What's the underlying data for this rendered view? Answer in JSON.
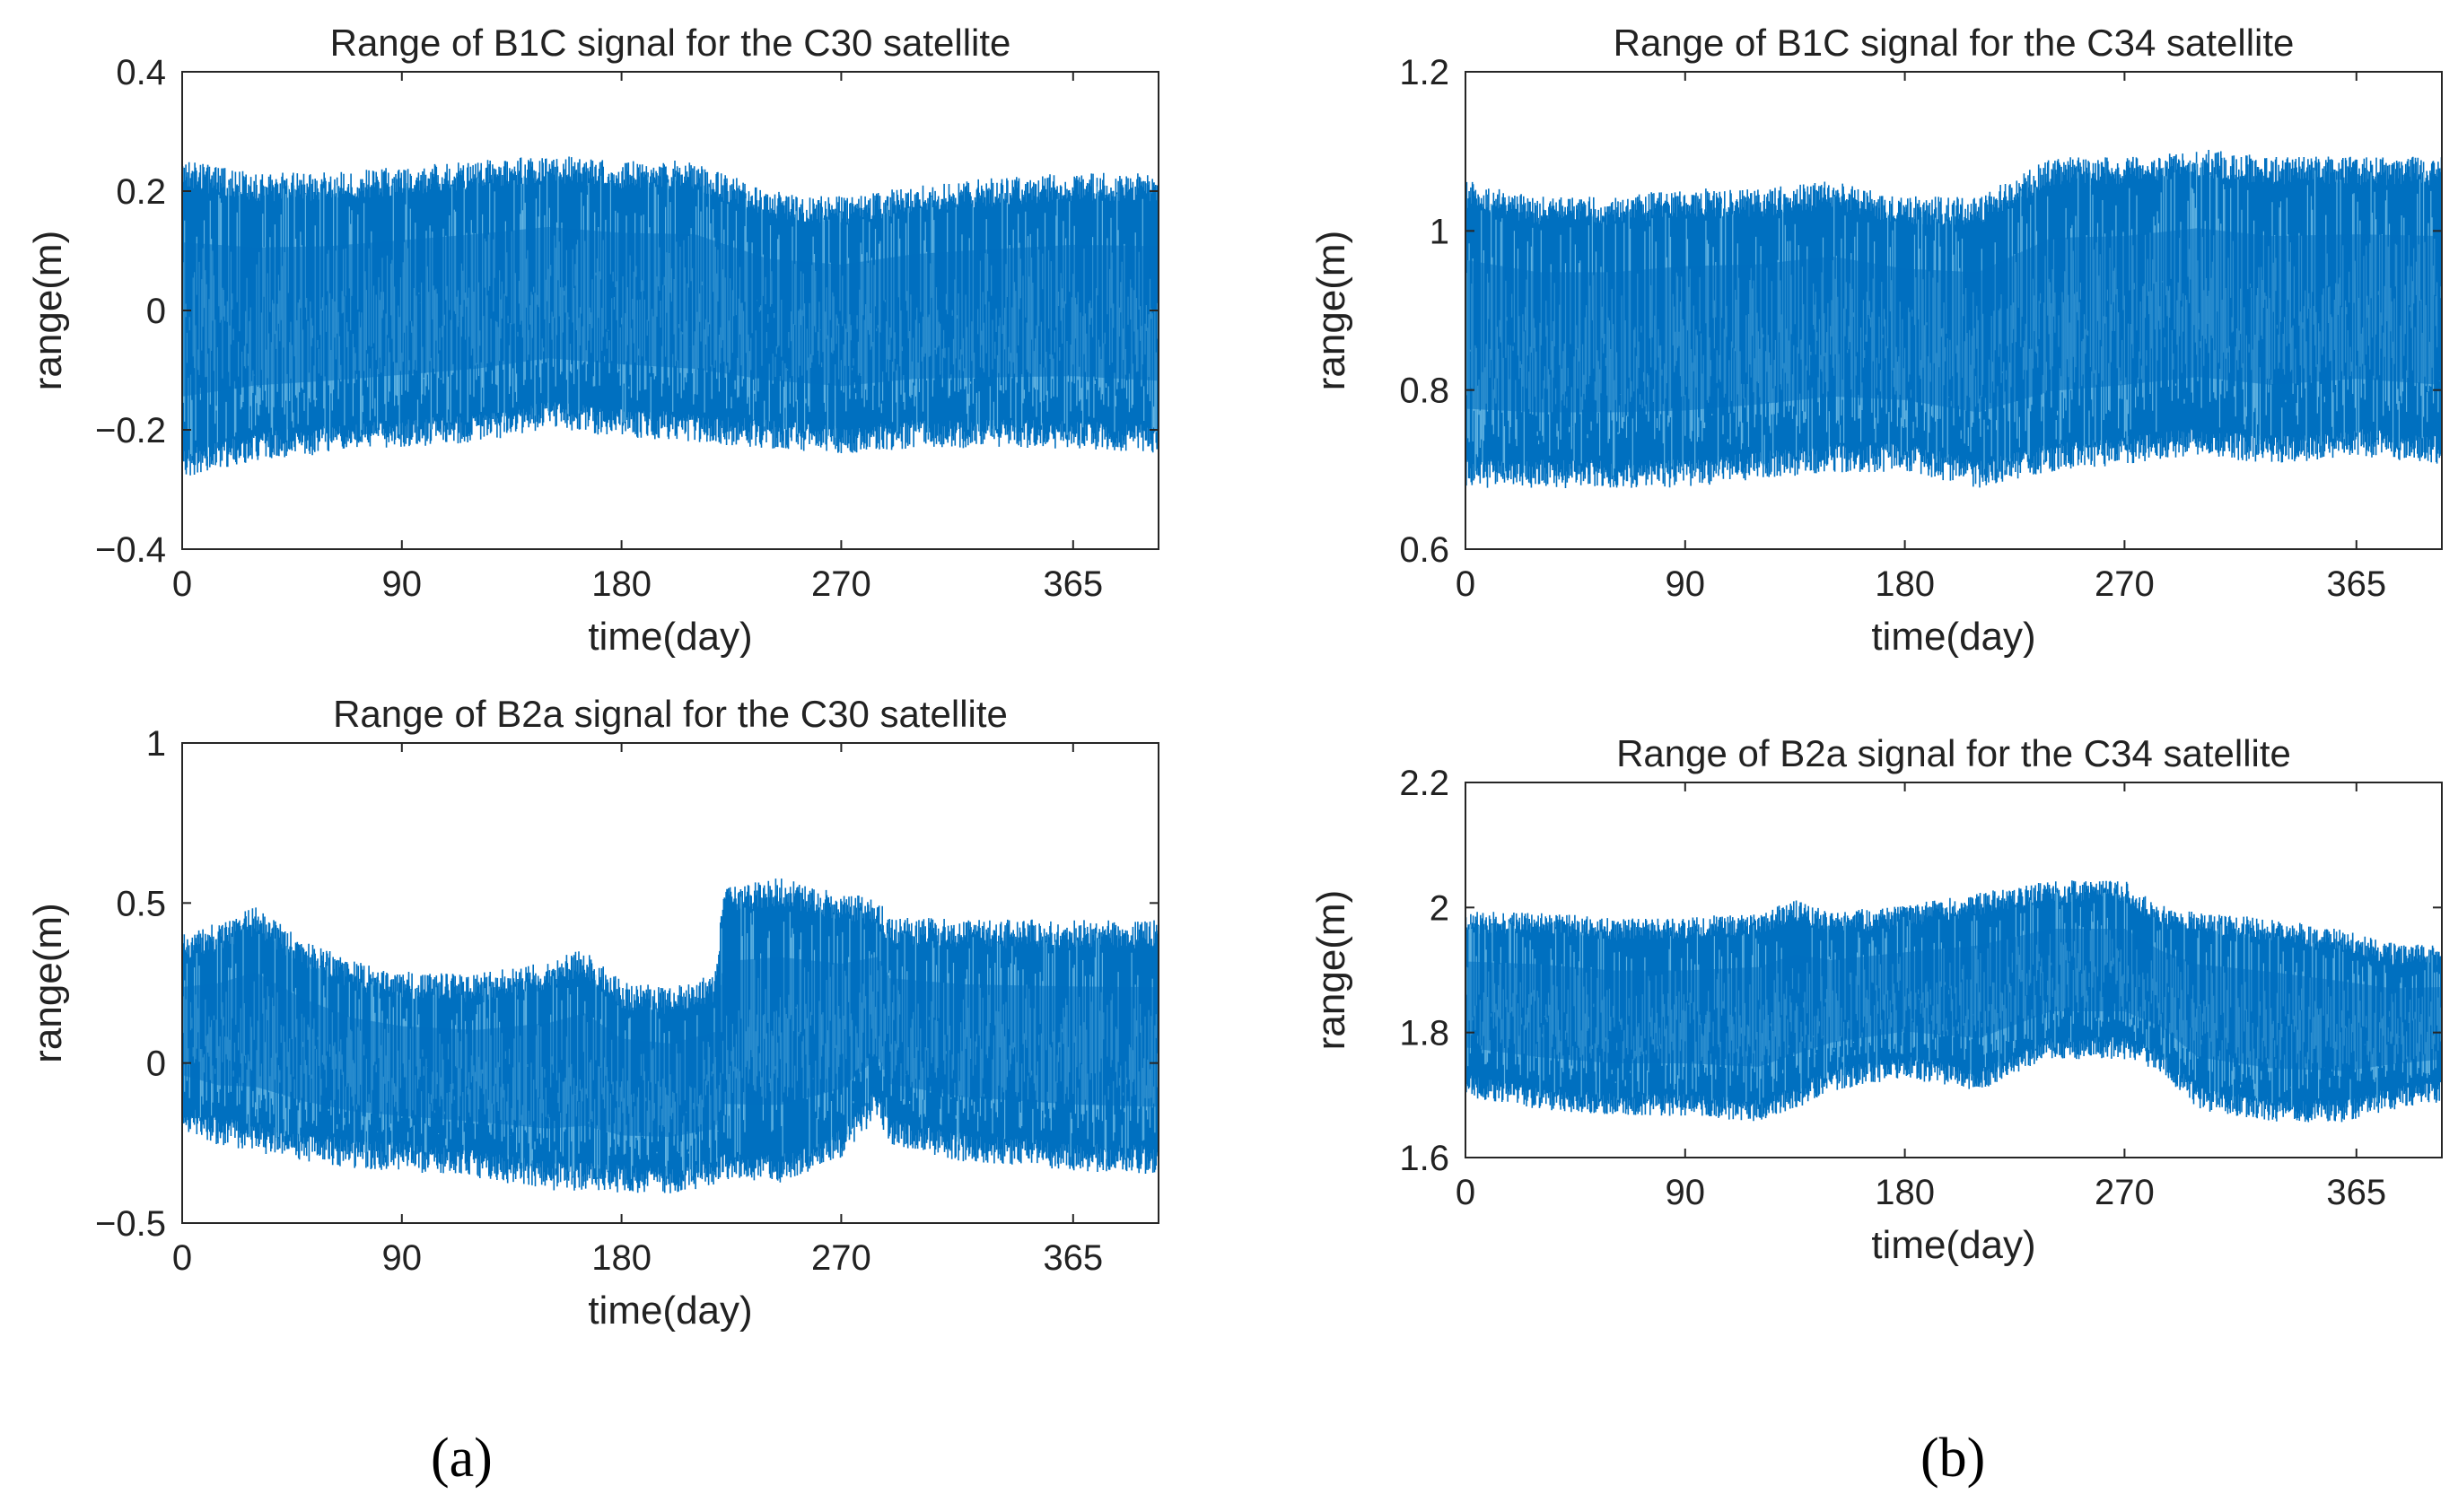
{
  "figure": {
    "panel_labels": [
      "(a)",
      "(b)"
    ]
  },
  "chart_data": [
    {
      "type": "line",
      "title": "Range of B1C signal for the C30 satellite",
      "xlabel": "time(day)",
      "ylabel": "range(m)",
      "xlim": [
        0,
        400
      ],
      "ylim": [
        -0.4,
        0.4
      ],
      "xticks": [
        0,
        90,
        180,
        270,
        365
      ],
      "yticks": [
        -0.4,
        -0.2,
        0,
        0.2,
        0.4
      ],
      "ytick_labels": [
        "−0.4",
        "−0.2",
        "0",
        "0.2",
        "0.4"
      ],
      "grid": false,
      "series_color": "#0070c0",
      "highlight_color": "#7fc8ec",
      "series": [
        {
          "x": [
            0,
            30,
            60,
            90,
            120,
            150,
            180,
            210,
            240,
            270,
            300,
            330,
            365,
            400
          ],
          "upper": [
            0.22,
            0.2,
            0.2,
            0.21,
            0.22,
            0.23,
            0.22,
            0.22,
            0.17,
            0.16,
            0.18,
            0.19,
            0.2,
            0.2
          ],
          "lower": [
            -0.25,
            -0.22,
            -0.21,
            -0.2,
            -0.19,
            -0.17,
            -0.18,
            -0.19,
            -0.2,
            -0.21,
            -0.2,
            -0.2,
            -0.2,
            -0.21
          ]
        }
      ]
    },
    {
      "type": "line",
      "title": "Range of B2a signal for the C30 satellite",
      "xlabel": "time(day)",
      "ylabel": "range(m)",
      "xlim": [
        0,
        400
      ],
      "ylim": [
        -0.5,
        1
      ],
      "xticks": [
        0,
        90,
        180,
        270,
        365
      ],
      "yticks": [
        -0.5,
        0,
        0.5,
        1
      ],
      "ytick_labels": [
        "−0.5",
        "0",
        "0.5",
        "1"
      ],
      "grid": false,
      "series_color": "#0070c0",
      "highlight_color": "#7fc8ec",
      "series": [
        {
          "x": [
            0,
            15,
            30,
            50,
            70,
            90,
            120,
            150,
            165,
            180,
            200,
            218,
            222,
            245,
            270,
            285,
            290,
            320,
            350,
            365,
            400
          ],
          "upper": [
            0.35,
            0.38,
            0.43,
            0.33,
            0.26,
            0.23,
            0.22,
            0.26,
            0.3,
            0.2,
            0.18,
            0.22,
            0.5,
            0.52,
            0.47,
            0.46,
            0.4,
            0.39,
            0.39,
            0.39,
            0.39
          ],
          "lower": [
            -0.15,
            -0.2,
            -0.22,
            -0.25,
            -0.27,
            -0.28,
            -0.3,
            -0.34,
            -0.34,
            -0.35,
            -0.35,
            -0.33,
            -0.31,
            -0.32,
            -0.24,
            -0.11,
            -0.2,
            -0.25,
            -0.27,
            -0.28,
            -0.29
          ]
        }
      ]
    },
    {
      "type": "line",
      "title": "Range of B1C signal for the C34 satellite",
      "xlabel": "time(day)",
      "ylabel": "range(m)",
      "xlim": [
        0,
        400
      ],
      "ylim": [
        0.6,
        1.2
      ],
      "xticks": [
        0,
        90,
        180,
        270,
        365
      ],
      "yticks": [
        0.6,
        0.8,
        1,
        1.2
      ],
      "ytick_labels": [
        "0.6",
        "0.8",
        "1",
        "1.2"
      ],
      "grid": false,
      "series_color": "#0070c0",
      "highlight_color": "#7fc8ec",
      "series": [
        {
          "x": [
            0,
            30,
            60,
            90,
            120,
            150,
            180,
            210,
            240,
            270,
            300,
            330,
            365,
            400
          ],
          "upper": [
            1.04,
            1.02,
            1.02,
            1.03,
            1.03,
            1.04,
            1.02,
            1.02,
            1.07,
            1.07,
            1.08,
            1.07,
            1.07,
            1.07
          ],
          "lower": [
            0.7,
            0.7,
            0.7,
            0.7,
            0.71,
            0.72,
            0.72,
            0.7,
            0.72,
            0.73,
            0.74,
            0.73,
            0.74,
            0.73
          ]
        }
      ]
    },
    {
      "type": "line",
      "title": "Range of B2a signal for the C34 satellite",
      "xlabel": "time(day)",
      "ylabel": "range(m)",
      "xlim": [
        0,
        400
      ],
      "ylim": [
        1.6,
        2.2
      ],
      "xticks": [
        0,
        90,
        180,
        270,
        365
      ],
      "yticks": [
        1.6,
        1.8,
        2,
        2.2
      ],
      "ytick_labels": [
        "1.6",
        "1.8",
        "2",
        "2.2"
      ],
      "grid": false,
      "series_color": "#0070c0",
      "highlight_color": "#7fc8ec",
      "series": [
        {
          "x": [
            0,
            30,
            60,
            90,
            120,
            135,
            150,
            180,
            210,
            240,
            270,
            285,
            300,
            330,
            360,
            380,
            400
          ],
          "upper": [
            1.97,
            1.97,
            1.96,
            1.96,
            1.97,
            1.99,
            1.97,
            1.98,
            2.0,
            2.02,
            2.02,
            1.98,
            1.97,
            1.96,
            1.94,
            1.92,
            1.92
          ],
          "lower": [
            1.72,
            1.7,
            1.69,
            1.69,
            1.68,
            1.7,
            1.73,
            1.75,
            1.73,
            1.78,
            1.78,
            1.76,
            1.7,
            1.68,
            1.68,
            1.7,
            1.71
          ]
        }
      ]
    }
  ]
}
